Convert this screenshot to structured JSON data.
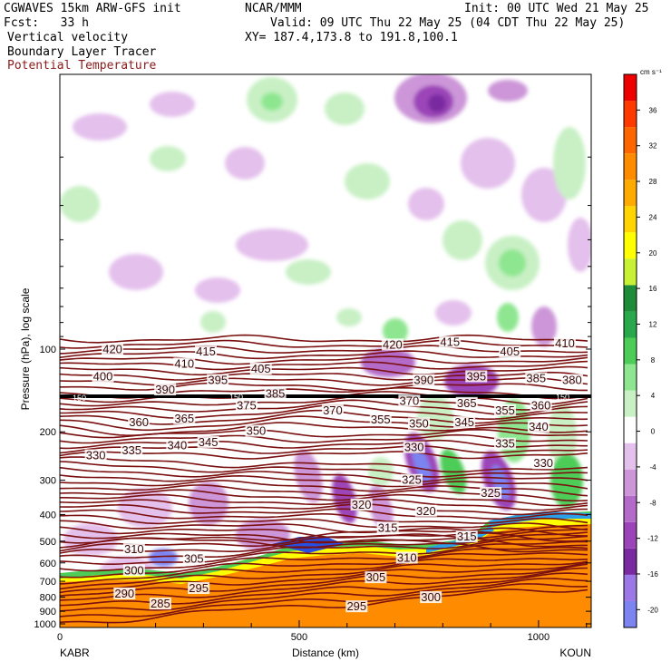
{
  "header": {
    "model": "CGWAVES 15km ARW-GFS init",
    "org": "NCAR/MMM",
    "init": "Init: 00 UTC Wed 21 May 25",
    "fcst": "Fcst:   33 h",
    "valid": "Valid: 09 UTC Thu 22 May 25 (04 CDT Thu 22 May 25)",
    "field1": "Vertical velocity",
    "field2": "Boundary Layer Tracer",
    "field3": "Potential Temperature",
    "xy": "XY= 187.4,173.8 to 191.8,100.1"
  },
  "colorbar": {
    "units": "cm s⁻¹",
    "levels": [
      -20,
      -16,
      -12,
      -8,
      -4,
      0,
      4,
      8,
      12,
      16,
      20,
      24,
      28,
      32,
      36
    ],
    "colors": [
      "#7c84f2",
      "#9c78e6",
      "#7a2aa0",
      "#9b44b8",
      "#b46ac8",
      "#cc96d8",
      "#e4c0ec",
      "#ffffff",
      "#c8f0c4",
      "#8ee690",
      "#4ecc58",
      "#2aa84c",
      "#1f8c3a",
      "#c8f034",
      "#ffff00",
      "#ffd400",
      "#ffaa00",
      "#ff8c00",
      "#ff6600",
      "#ff3a00",
      "#ee0000"
    ]
  },
  "chart_data": {
    "type": "heatmap",
    "xlabel": "Distance (km)",
    "ylabel": "Pressure (hPa), log scale",
    "x_ticks": [
      0,
      500,
      1000
    ],
    "x_range": [
      0,
      1110
    ],
    "y_ticks": [
      100,
      200,
      300,
      400,
      500,
      600,
      700,
      800,
      900,
      1000
    ],
    "left_label": "KABR",
    "right_label": "KOUN",
    "isentrope_labels": [
      {
        "x": 110,
        "p": 102,
        "v": "420"
      },
      {
        "x": 305,
        "p": 104,
        "v": "415"
      },
      {
        "x": 695,
        "p": 98,
        "v": "420"
      },
      {
        "x": 815,
        "p": 96,
        "v": "415"
      },
      {
        "x": 1055,
        "p": 97,
        "v": "410"
      },
      {
        "x": 260,
        "p": 115,
        "v": "410"
      },
      {
        "x": 420,
        "p": 120,
        "v": "405"
      },
      {
        "x": 940,
        "p": 104,
        "v": "405"
      },
      {
        "x": 90,
        "p": 128,
        "v": "400"
      },
      {
        "x": 330,
        "p": 132,
        "v": "395"
      },
      {
        "x": 870,
        "p": 128,
        "v": "395"
      },
      {
        "x": 760,
        "p": 132,
        "v": "390"
      },
      {
        "x": 220,
        "p": 143,
        "v": "390"
      },
      {
        "x": 995,
        "p": 130,
        "v": "385"
      },
      {
        "x": 450,
        "p": 148,
        "v": "385"
      },
      {
        "x": 1070,
        "p": 132,
        "v": "380"
      },
      {
        "x": 390,
        "p": 163,
        "v": "375"
      },
      {
        "x": 730,
        "p": 157,
        "v": "370"
      },
      {
        "x": 570,
        "p": 170,
        "v": "370"
      },
      {
        "x": 850,
        "p": 160,
        "v": "365"
      },
      {
        "x": 260,
        "p": 182,
        "v": "365"
      },
      {
        "x": 165,
        "p": 188,
        "v": "360"
      },
      {
        "x": 1005,
        "p": 163,
        "v": "360"
      },
      {
        "x": 670,
        "p": 184,
        "v": "355"
      },
      {
        "x": 930,
        "p": 170,
        "v": "355"
      },
      {
        "x": 410,
        "p": 202,
        "v": "350"
      },
      {
        "x": 750,
        "p": 190,
        "v": "350"
      },
      {
        "x": 845,
        "p": 188,
        "v": "345"
      },
      {
        "x": 310,
        "p": 222,
        "v": "345"
      },
      {
        "x": 245,
        "p": 228,
        "v": "340"
      },
      {
        "x": 1000,
        "p": 195,
        "v": "340"
      },
      {
        "x": 150,
        "p": 238,
        "v": "335"
      },
      {
        "x": 930,
        "p": 225,
        "v": "335"
      },
      {
        "x": 75,
        "p": 248,
        "v": "330"
      },
      {
        "x": 740,
        "p": 232,
        "v": "330"
      },
      {
        "x": 1010,
        "p": 265,
        "v": "330"
      },
      {
        "x": 735,
        "p": 305,
        "v": "325"
      },
      {
        "x": 900,
        "p": 340,
        "v": "325"
      },
      {
        "x": 630,
        "p": 375,
        "v": "320"
      },
      {
        "x": 765,
        "p": 395,
        "v": "320"
      },
      {
        "x": 685,
        "p": 455,
        "v": "315"
      },
      {
        "x": 850,
        "p": 490,
        "v": "315"
      },
      {
        "x": 155,
        "p": 545,
        "v": "310"
      },
      {
        "x": 725,
        "p": 585,
        "v": "310"
      },
      {
        "x": 280,
        "p": 590,
        "v": "305"
      },
      {
        "x": 660,
        "p": 690,
        "v": "305"
      },
      {
        "x": 155,
        "p": 650,
        "v": "300"
      },
      {
        "x": 775,
        "p": 815,
        "v": "300"
      },
      {
        "x": 135,
        "p": 790,
        "v": "290"
      },
      {
        "x": 290,
        "p": 755,
        "v": "295"
      },
      {
        "x": 210,
        "p": 860,
        "v": "285"
      },
      {
        "x": 620,
        "p": 880,
        "v": "295"
      }
    ],
    "tropopause_label": "150"
  }
}
